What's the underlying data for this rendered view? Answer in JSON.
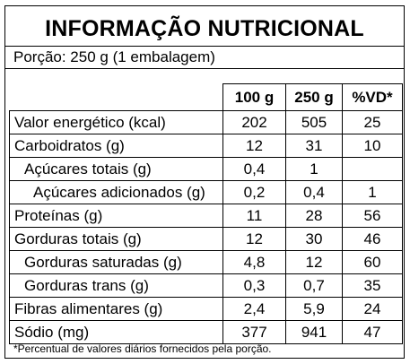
{
  "label": {
    "title": "INFORMAÇÃO NUTRICIONAL",
    "portion": "Porção: 250 g (1 embalagem)",
    "columns": {
      "per_100g": "100 g",
      "per_250g": "250 g",
      "vd": "%VD*"
    },
    "rows": [
      {
        "name": "Valor energético (kcal)",
        "v100": "202",
        "v250": "505",
        "vd": "25"
      },
      {
        "name": "Carboidratos (g)",
        "v100": "12",
        "v250": "31",
        "vd": "10"
      },
      {
        "name": "Açúcares totais (g)",
        "v100": "0,4",
        "v250": "1",
        "vd": ""
      },
      {
        "name": "Açúcares adicionados (g)",
        "v100": "0,2",
        "v250": "0,4",
        "vd": "1"
      },
      {
        "name": "Proteínas (g)",
        "v100": "11",
        "v250": "28",
        "vd": "56"
      },
      {
        "name": "Gorduras totais (g)",
        "v100": "12",
        "v250": "30",
        "vd": "46"
      },
      {
        "name": "Gorduras saturadas (g)",
        "v100": "4,8",
        "v250": "12",
        "vd": "60"
      },
      {
        "name": "Gorduras trans (g)",
        "v100": "0,3",
        "v250": "0,7",
        "vd": "35"
      },
      {
        "name": "Fibras alimentares (g)",
        "v100": "2,4",
        "v250": "5,9",
        "vd": "24"
      },
      {
        "name": "Sódio (mg)",
        "v100": "377",
        "v250": "941",
        "vd": "47"
      }
    ],
    "footnote": "*Percentual de valores diários fornecidos pela porção."
  }
}
